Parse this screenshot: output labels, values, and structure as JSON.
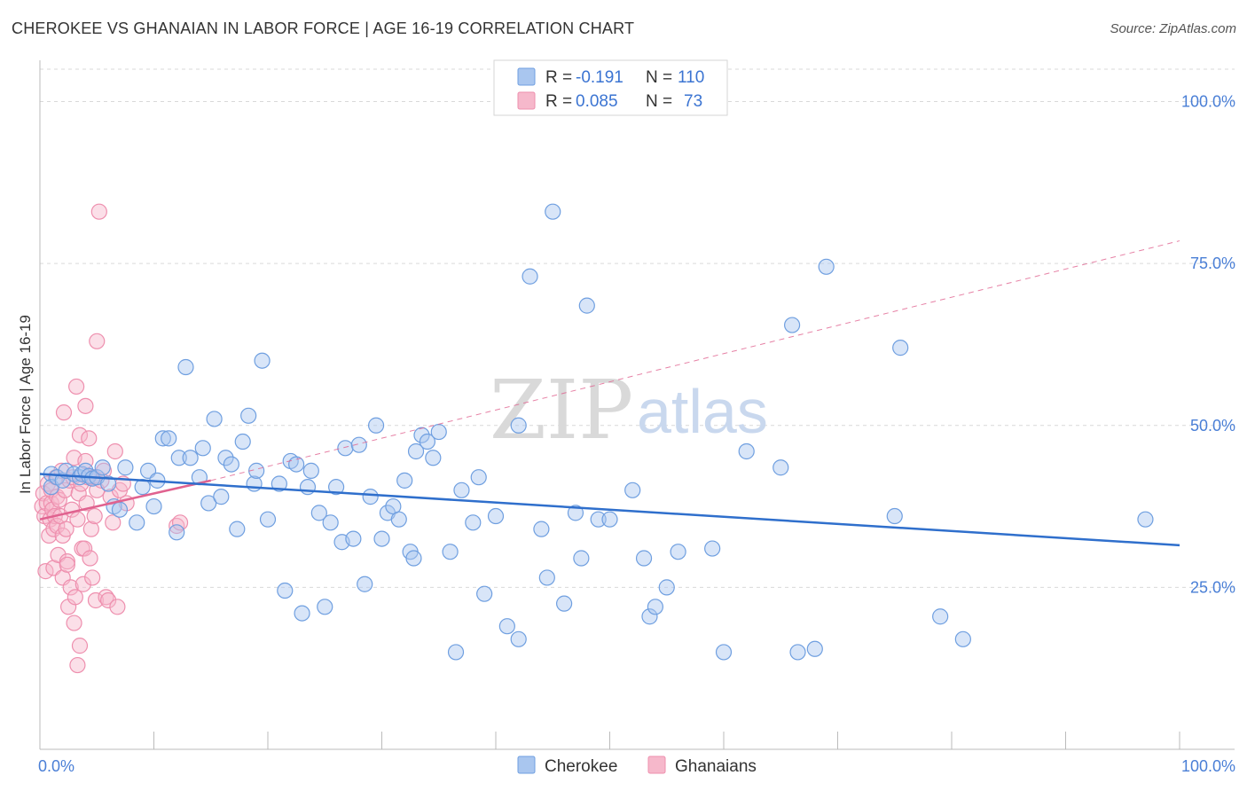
{
  "title": "CHEROKEE VS GHANAIAN IN LABOR FORCE | AGE 16-19 CORRELATION CHART",
  "source": "Source: ZipAtlas.com",
  "watermark": {
    "zip": "ZIP",
    "atlas": "atlas"
  },
  "colors": {
    "cherokee_fill": "#a9c6ef",
    "cherokee_stroke": "#6f9fe0",
    "cherokee_line": "#2f6fcc",
    "ghana_fill": "#f6b8cb",
    "ghana_stroke": "#ee8fae",
    "ghana_line": "#e0628f",
    "grid": "#d9d9d9",
    "axis_label": "#4a7fd6"
  },
  "legend": {
    "r_label": "R =",
    "n_label": "N =",
    "cherokee_r": "-0.191",
    "cherokee_n": "110",
    "ghana_r": "0.085",
    "ghana_n": "73"
  },
  "chart_data": {
    "type": "scatter",
    "title": "CHEROKEE VS GHANAIAN IN LABOR FORCE | AGE 16-19 CORRELATION CHART",
    "xlabel": "",
    "ylabel": "In Labor Force | Age 16-19",
    "xlim": [
      0,
      100
    ],
    "ylim": [
      0,
      105
    ],
    "x_tick_labels": [
      "0.0%",
      "100.0%"
    ],
    "y_ticks": [
      25,
      50,
      75,
      100
    ],
    "y_tick_labels": [
      "25.0%",
      "50.0%",
      "75.0%",
      "100.0%"
    ],
    "series": [
      {
        "name": "Cherokee",
        "r": -0.191,
        "n": 110,
        "trend": {
          "x": [
            0,
            100
          ],
          "y": [
            42.5,
            31.5
          ],
          "style": "solid"
        },
        "points": [
          [
            1,
            42.5
          ],
          [
            1,
            40.5
          ],
          [
            1.5,
            42
          ],
          [
            2,
            41.5
          ],
          [
            2.3,
            43
          ],
          [
            3,
            42.5
          ],
          [
            3.5,
            42
          ],
          [
            3.7,
            42.5
          ],
          [
            4,
            43
          ],
          [
            4.3,
            42.2
          ],
          [
            4.6,
            41.8
          ],
          [
            5,
            42
          ],
          [
            5.5,
            43.5
          ],
          [
            6,
            41
          ],
          [
            6.5,
            37.5
          ],
          [
            7,
            37
          ],
          [
            7.5,
            43.5
          ],
          [
            8.5,
            35
          ],
          [
            9,
            40.5
          ],
          [
            9.5,
            43
          ],
          [
            10,
            37.5
          ],
          [
            10.3,
            41.5
          ],
          [
            10.8,
            48
          ],
          [
            11.3,
            48
          ],
          [
            12,
            33.5
          ],
          [
            12.2,
            45
          ],
          [
            12.8,
            59
          ],
          [
            13.2,
            45
          ],
          [
            14,
            42
          ],
          [
            14.3,
            46.5
          ],
          [
            14.8,
            38
          ],
          [
            15.3,
            51
          ],
          [
            15.9,
            39
          ],
          [
            16.3,
            45
          ],
          [
            16.8,
            44
          ],
          [
            17.3,
            34
          ],
          [
            17.8,
            47.5
          ],
          [
            18.3,
            51.5
          ],
          [
            18.8,
            41
          ],
          [
            19,
            43
          ],
          [
            19.5,
            60
          ],
          [
            20,
            35.5
          ],
          [
            21,
            41
          ],
          [
            21.5,
            24.5
          ],
          [
            22,
            44.5
          ],
          [
            22.5,
            44
          ],
          [
            23,
            21
          ],
          [
            23.5,
            40.5
          ],
          [
            23.8,
            43
          ],
          [
            24.5,
            36.5
          ],
          [
            25,
            22
          ],
          [
            25.5,
            35
          ],
          [
            26,
            40.5
          ],
          [
            26.5,
            32
          ],
          [
            26.8,
            46.5
          ],
          [
            27.5,
            32.5
          ],
          [
            28,
            47
          ],
          [
            28.5,
            25.5
          ],
          [
            29,
            39
          ],
          [
            29.5,
            50
          ],
          [
            30,
            32.5
          ],
          [
            30.5,
            36.5
          ],
          [
            31,
            37.5
          ],
          [
            31.5,
            35.5
          ],
          [
            32,
            41.5
          ],
          [
            32.5,
            30.5
          ],
          [
            32.8,
            29.5
          ],
          [
            33,
            46
          ],
          [
            33.5,
            48.5
          ],
          [
            34,
            47.5
          ],
          [
            34.5,
            45
          ],
          [
            35,
            49
          ],
          [
            36,
            30.5
          ],
          [
            36.5,
            15
          ],
          [
            37,
            40
          ],
          [
            38,
            35
          ],
          [
            38.5,
            42
          ],
          [
            39,
            24
          ],
          [
            40,
            36
          ],
          [
            41,
            19
          ],
          [
            42,
            17
          ],
          [
            42,
            50
          ],
          [
            43,
            73
          ],
          [
            44,
            34
          ],
          [
            44.5,
            26.5
          ],
          [
            45,
            83
          ],
          [
            46,
            22.5
          ],
          [
            47,
            36.5
          ],
          [
            47.5,
            29.5
          ],
          [
            48,
            68.5
          ],
          [
            49,
            35.5
          ],
          [
            50,
            35.5
          ],
          [
            52,
            40
          ],
          [
            53,
            29.5
          ],
          [
            53.5,
            20.5
          ],
          [
            54,
            22
          ],
          [
            55,
            25
          ],
          [
            56,
            30.5
          ],
          [
            59,
            31
          ],
          [
            60,
            15
          ],
          [
            62,
            46
          ],
          [
            65,
            43.5
          ],
          [
            66,
            65.5
          ],
          [
            66.5,
            15
          ],
          [
            68,
            15.5
          ],
          [
            69,
            74.5
          ],
          [
            75,
            36
          ],
          [
            75.5,
            62
          ],
          [
            79,
            20.5
          ],
          [
            81,
            17
          ],
          [
            97,
            35.5
          ]
        ]
      },
      {
        "name": "Ghanaians",
        "r": 0.085,
        "n": 73,
        "trend": {
          "solid_x": [
            0,
            15
          ],
          "solid_y": [
            35.5,
            41.5
          ],
          "dashed_x": [
            15,
            100
          ],
          "dashed_y": [
            41.5,
            78.5
          ]
        },
        "points": [
          [
            0.2,
            37.5
          ],
          [
            0.3,
            39.5
          ],
          [
            0.4,
            36
          ],
          [
            0.5,
            27.5
          ],
          [
            0.6,
            38
          ],
          [
            0.7,
            41
          ],
          [
            0.8,
            33
          ],
          [
            0.9,
            35.5
          ],
          [
            1,
            38
          ],
          [
            1,
            40
          ],
          [
            1.1,
            37
          ],
          [
            1.2,
            34
          ],
          [
            1.2,
            28
          ],
          [
            1.3,
            36
          ],
          [
            1.4,
            42
          ],
          [
            1.5,
            39
          ],
          [
            1.5,
            34.5
          ],
          [
            1.6,
            30
          ],
          [
            1.7,
            38.5
          ],
          [
            1.8,
            36
          ],
          [
            1.9,
            43
          ],
          [
            2,
            33
          ],
          [
            2,
            26.5
          ],
          [
            2.1,
            52
          ],
          [
            2.2,
            40
          ],
          [
            2.3,
            34
          ],
          [
            2.4,
            29
          ],
          [
            2.4,
            28.5
          ],
          [
            2.5,
            22
          ],
          [
            2.6,
            41.5
          ],
          [
            2.7,
            25
          ],
          [
            2.8,
            37
          ],
          [
            2.9,
            42
          ],
          [
            3,
            45
          ],
          [
            3,
            19.5
          ],
          [
            3.1,
            23.5
          ],
          [
            3.2,
            56
          ],
          [
            3.3,
            35.5
          ],
          [
            3.3,
            13
          ],
          [
            3.4,
            39.5
          ],
          [
            3.5,
            16
          ],
          [
            3.5,
            48.5
          ],
          [
            3.6,
            41
          ],
          [
            3.7,
            31
          ],
          [
            3.8,
            25.5
          ],
          [
            3.9,
            31
          ],
          [
            4,
            53
          ],
          [
            4,
            44.5
          ],
          [
            4.1,
            38
          ],
          [
            4.2,
            42
          ],
          [
            4.3,
            48
          ],
          [
            4.4,
            29.5
          ],
          [
            4.5,
            34
          ],
          [
            4.6,
            26.5
          ],
          [
            4.7,
            42
          ],
          [
            4.8,
            36
          ],
          [
            4.9,
            23
          ],
          [
            5,
            40
          ],
          [
            5,
            63
          ],
          [
            5.2,
            83
          ],
          [
            5.4,
            41.5
          ],
          [
            5.6,
            43
          ],
          [
            5.8,
            23.5
          ],
          [
            6,
            23
          ],
          [
            6.2,
            39
          ],
          [
            6.4,
            35
          ],
          [
            6.6,
            46
          ],
          [
            6.8,
            22
          ],
          [
            7,
            40
          ],
          [
            7.3,
            41
          ],
          [
            7.6,
            38
          ],
          [
            12,
            34.5
          ],
          [
            12.3,
            35
          ]
        ]
      }
    ]
  },
  "bottom_legend": {
    "cherokee": "Cherokee",
    "ghana": "Ghanaians"
  }
}
